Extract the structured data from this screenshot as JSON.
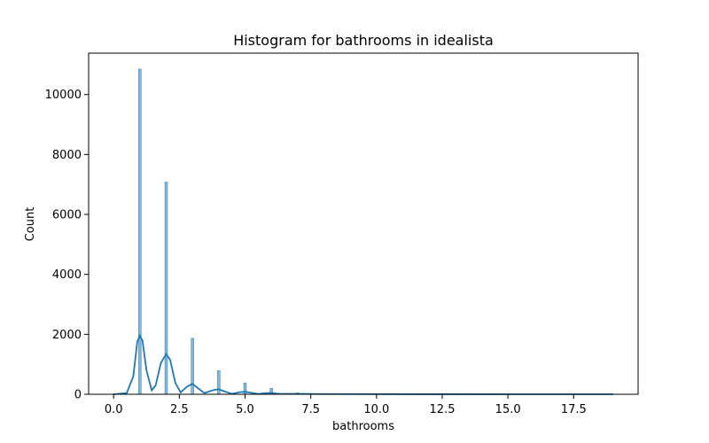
{
  "chart_data": {
    "type": "histogram",
    "title": "Histogram for bathrooms in idealista",
    "xlabel": "bathrooms",
    "ylabel": "Count",
    "xlim": [
      -0.95,
      19.95
    ],
    "ylim": [
      0,
      11380
    ],
    "xticks": [
      0.0,
      2.5,
      5.0,
      7.5,
      10.0,
      12.5,
      15.0,
      17.5
    ],
    "xtick_labels": [
      "0.0",
      "2.5",
      "5.0",
      "7.5",
      "10.0",
      "12.5",
      "15.0",
      "17.5"
    ],
    "yticks": [
      0,
      2000,
      4000,
      6000,
      8000,
      10000
    ],
    "ytick_labels": [
      "0",
      "2000",
      "4000",
      "6000",
      "8000",
      "10000"
    ],
    "bar_color": "#1f77b4",
    "bar_opacity": 0.55,
    "bins": [
      {
        "x": 1,
        "count": 10850
      },
      {
        "x": 2,
        "count": 7080
      },
      {
        "x": 3,
        "count": 1870
      },
      {
        "x": 4,
        "count": 790
      },
      {
        "x": 5,
        "count": 380
      },
      {
        "x": 6,
        "count": 200
      },
      {
        "x": 7,
        "count": 50
      },
      {
        "x": 8,
        "count": 20
      },
      {
        "x": 9,
        "count": 10
      },
      {
        "x": 10,
        "count": 5
      }
    ],
    "kde": {
      "name": "kde",
      "color": "#1f77b4",
      "points": [
        [
          0.0,
          0
        ],
        [
          0.5,
          40
        ],
        [
          0.75,
          600
        ],
        [
          0.9,
          1750
        ],
        [
          1.0,
          1960
        ],
        [
          1.1,
          1780
        ],
        [
          1.25,
          800
        ],
        [
          1.45,
          130
        ],
        [
          1.6,
          300
        ],
        [
          1.8,
          1050
        ],
        [
          2.0,
          1340
        ],
        [
          2.15,
          1150
        ],
        [
          2.35,
          380
        ],
        [
          2.55,
          60
        ],
        [
          2.8,
          260
        ],
        [
          3.0,
          350
        ],
        [
          3.2,
          210
        ],
        [
          3.45,
          40
        ],
        [
          3.8,
          140
        ],
        [
          4.0,
          170
        ],
        [
          4.2,
          100
        ],
        [
          4.5,
          15
        ],
        [
          4.8,
          70
        ],
        [
          5.0,
          85
        ],
        [
          5.2,
          55
        ],
        [
          5.5,
          10
        ],
        [
          5.8,
          40
        ],
        [
          6.0,
          45
        ],
        [
          6.3,
          15
        ],
        [
          7.0,
          15
        ],
        [
          8.0,
          8
        ],
        [
          10.0,
          3
        ],
        [
          12.0,
          2
        ],
        [
          15.0,
          1
        ],
        [
          19.0,
          0
        ]
      ]
    }
  }
}
